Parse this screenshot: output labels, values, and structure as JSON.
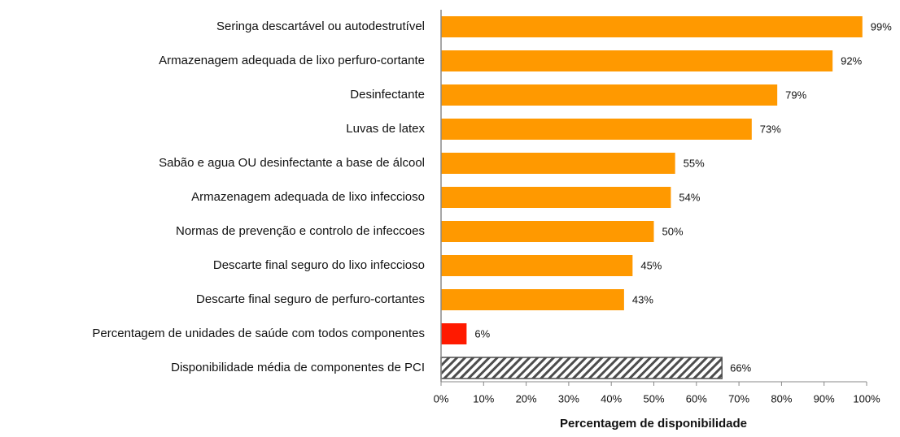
{
  "chart_data": {
    "type": "barh",
    "categories": [
      "Seringa descartável ou autodestrutível",
      "Armazenagem adequada de lixo perfuro-cortante",
      "Desinfectante",
      "Luvas de latex",
      "Sabão e agua OU desinfectante a base de álcool",
      "Armazenagem adequada de lixo infeccioso",
      "Normas de prevenção e controlo de infeccoes",
      "Descarte final seguro do lixo infeccioso",
      "Descarte final seguro de perfuro-cortantes",
      "Percentagem de unidades de saúde com todos componentes",
      "Disponibilidade média de componentes de PCI"
    ],
    "values": [
      99,
      92,
      79,
      73,
      55,
      54,
      50,
      45,
      43,
      6,
      66
    ],
    "value_labels": [
      "99%",
      "92%",
      "79%",
      "73%",
      "55%",
      "54%",
      "50%",
      "45%",
      "43%",
      "6%",
      "66%"
    ],
    "colors": [
      "#ff9900",
      "#ff9900",
      "#ff9900",
      "#ff9900",
      "#ff9900",
      "#ff9900",
      "#ff9900",
      "#ff9900",
      "#ff9900",
      "#ff1a00",
      "#4d4d4d"
    ],
    "patterns": [
      "solid",
      "solid",
      "solid",
      "solid",
      "solid",
      "solid",
      "solid",
      "solid",
      "solid",
      "solid",
      "hatch"
    ],
    "xlabel": "Percentagem de disponibilidade",
    "xlim": [
      0,
      100
    ],
    "xticks": [
      {
        "value": 0,
        "label": "0%"
      },
      {
        "value": 10,
        "label": "10%"
      },
      {
        "value": 20,
        "label": "20%"
      },
      {
        "value": 30,
        "label": "30%"
      },
      {
        "value": 40,
        "label": "40%"
      },
      {
        "value": 50,
        "label": "50%"
      },
      {
        "value": 60,
        "label": "60%"
      },
      {
        "value": 70,
        "label": "70%"
      },
      {
        "value": 80,
        "label": "80%"
      },
      {
        "value": 90,
        "label": "90%"
      },
      {
        "value": 100,
        "label": "100%"
      }
    ],
    "grid": false
  }
}
